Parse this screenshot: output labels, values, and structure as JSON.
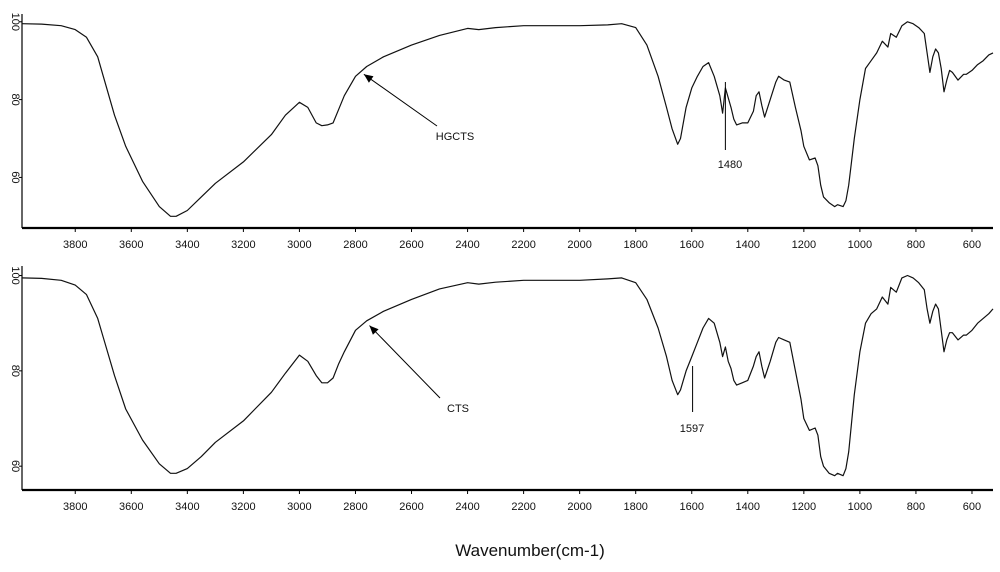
{
  "chart_data": [
    {
      "type": "line",
      "title": "",
      "xlabel": "",
      "ylabel": "",
      "xlim": [
        3990,
        525
      ],
      "ylim": [
        47,
        102
      ],
      "x_ticks": [
        3800,
        3600,
        3400,
        3200,
        3000,
        2800,
        2600,
        2400,
        2200,
        2000,
        1800,
        1600,
        1400,
        1200,
        1000,
        800,
        600
      ],
      "y_ticks": [
        100,
        80,
        60
      ],
      "grid": false,
      "series": [
        {
          "x": [
            3990,
            3920,
            3850,
            3800,
            3760,
            3720,
            3700,
            3660,
            3620,
            3560,
            3500,
            3460,
            3440,
            3400,
            3350,
            3300,
            3200,
            3100,
            3050,
            3000,
            2970,
            2940,
            2920,
            2900,
            2880,
            2860,
            2840,
            2800,
            2760,
            2700,
            2600,
            2500,
            2400,
            2360,
            2300,
            2200,
            2100,
            2000,
            1900,
            1850,
            1800,
            1760,
            1720,
            1690,
            1670,
            1650,
            1640,
            1620,
            1600,
            1580,
            1560,
            1540,
            1520,
            1500,
            1490,
            1480,
            1470,
            1460,
            1450,
            1440,
            1420,
            1400,
            1380,
            1370,
            1360,
            1350,
            1340,
            1320,
            1300,
            1290,
            1270,
            1250,
            1230,
            1210,
            1200,
            1180,
            1160,
            1150,
            1140,
            1130,
            1110,
            1090,
            1080,
            1060,
            1050,
            1040,
            1030,
            1020,
            1000,
            980,
            960,
            940,
            920,
            900,
            890,
            870,
            850,
            830,
            810,
            790,
            770,
            760,
            750,
            740,
            730,
            720,
            710,
            700,
            690,
            680,
            670,
            650,
            630,
            620,
            600,
            580,
            560,
            540,
            525
          ],
          "y": [
            99.5,
            99.4,
            99,
            98,
            96,
            91,
            86,
            76,
            68,
            59,
            52.5,
            50,
            50,
            51.5,
            55,
            58.5,
            64,
            71,
            76,
            79.3,
            78,
            74,
            73.3,
            73.5,
            74,
            77.5,
            81,
            86,
            88.5,
            91,
            94,
            96.5,
            98.3,
            98,
            98.5,
            99,
            99,
            99,
            99.2,
            99.5,
            98.5,
            94,
            86,
            78,
            72.5,
            68.5,
            70,
            78,
            83,
            86,
            88.5,
            89.5,
            86,
            81,
            76.5,
            83,
            80.5,
            78,
            75,
            73.5,
            74,
            74,
            77,
            81,
            82,
            78.5,
            75.5,
            80,
            84.5,
            86,
            85,
            84.5,
            78,
            72,
            68,
            64.5,
            65,
            63,
            58,
            55,
            53.5,
            52.5,
            53,
            52.5,
            54,
            58,
            64,
            70,
            80,
            88,
            90,
            92,
            95,
            93.5,
            97,
            96,
            99,
            100,
            99.5,
            98.5,
            97,
            92,
            87,
            91,
            93,
            92,
            88,
            82,
            85,
            87.5,
            87,
            85,
            86.5,
            86.5,
            87.5,
            89,
            90,
            91.5,
            92
          ]
        }
      ],
      "annotations": [
        {
          "text": "HGCTS",
          "x": 2770,
          "y": 86.5,
          "kind": "arrow"
        },
        {
          "text": "1480",
          "x": 1480,
          "y": 80.5,
          "kind": "line"
        }
      ]
    },
    {
      "type": "line",
      "title": "",
      "xlabel": "Wavenumber(cm-1)",
      "ylabel": "",
      "xlim": [
        3990,
        525
      ],
      "ylim": [
        55,
        102
      ],
      "x_ticks": [
        3800,
        3600,
        3400,
        3200,
        3000,
        2800,
        2600,
        2400,
        2200,
        2000,
        1800,
        1600,
        1400,
        1200,
        1000,
        800,
        600
      ],
      "y_ticks": [
        100,
        80,
        60
      ],
      "grid": false,
      "series": [
        {
          "x": [
            3990,
            3920,
            3850,
            3800,
            3760,
            3720,
            3700,
            3660,
            3620,
            3560,
            3500,
            3460,
            3440,
            3400,
            3350,
            3300,
            3200,
            3100,
            3050,
            3000,
            2970,
            2940,
            2920,
            2900,
            2880,
            2860,
            2840,
            2800,
            2760,
            2700,
            2600,
            2500,
            2400,
            2360,
            2300,
            2200,
            2100,
            2000,
            1900,
            1850,
            1800,
            1760,
            1720,
            1690,
            1670,
            1650,
            1640,
            1620,
            1600,
            1580,
            1560,
            1540,
            1520,
            1500,
            1490,
            1480,
            1470,
            1460,
            1450,
            1440,
            1420,
            1400,
            1380,
            1370,
            1360,
            1350,
            1340,
            1320,
            1300,
            1290,
            1270,
            1250,
            1230,
            1210,
            1200,
            1180,
            1160,
            1150,
            1140,
            1130,
            1110,
            1090,
            1080,
            1060,
            1050,
            1040,
            1030,
            1020,
            1000,
            980,
            960,
            940,
            920,
            900,
            890,
            870,
            850,
            830,
            810,
            790,
            770,
            760,
            750,
            740,
            730,
            720,
            710,
            700,
            690,
            680,
            670,
            650,
            630,
            620,
            600,
            580,
            560,
            540,
            525
          ],
          "y": [
            99.5,
            99.4,
            99,
            98,
            96,
            91,
            87,
            79,
            72,
            65.5,
            60.5,
            58.5,
            58.5,
            59.5,
            62,
            65,
            69.5,
            75.5,
            79.5,
            83.3,
            82,
            79,
            77.5,
            77.5,
            78.5,
            81.5,
            84,
            88.5,
            90.5,
            92.5,
            95,
            97.2,
            98.5,
            98.2,
            98.6,
            99,
            99,
            99,
            99.3,
            99.5,
            98.5,
            95,
            89,
            83,
            78,
            75,
            76,
            80,
            83,
            86,
            89,
            91,
            90,
            86,
            83,
            85,
            82,
            80.5,
            78,
            77,
            77.5,
            78,
            81,
            83,
            84,
            81,
            78.5,
            82,
            86,
            87,
            86.5,
            86,
            80,
            74,
            70,
            67.5,
            68,
            66.5,
            62,
            60,
            58.5,
            58,
            58.5,
            58,
            59.5,
            63,
            69,
            75,
            84,
            90,
            92,
            93,
            95.5,
            94,
            97.5,
            96.5,
            99.5,
            100,
            99.5,
            98.5,
            97,
            93,
            90,
            92.5,
            94,
            93,
            88.5,
            84,
            86.5,
            88,
            88,
            86.5,
            87.5,
            87.5,
            88.5,
            90,
            91,
            92,
            93
          ]
        }
      ],
      "annotations": [
        {
          "text": "CTS",
          "x": 2750,
          "y": 89.5,
          "kind": "arrow"
        },
        {
          "text": "1597",
          "x": 1597,
          "y": 82,
          "kind": "line"
        }
      ]
    }
  ]
}
